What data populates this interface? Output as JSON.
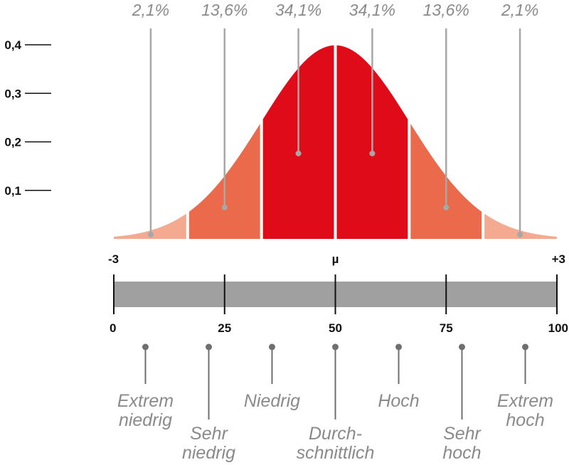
{
  "colors": {
    "outer": "#f4aa90",
    "mid": "#eb6a4c",
    "inner": "#e00b18",
    "bar": "#a0a0a0",
    "pointer": "#a7a7a7",
    "text_gray": "#8a8a8a",
    "dot": "#6f6f6f"
  },
  "chart_data": {
    "type": "area",
    "title": "",
    "distribution": "normal",
    "ylim": [
      0,
      0.4
    ],
    "xlim": [
      -3,
      3
    ],
    "y_ticks": [
      "0,4",
      "0,3",
      "0,2",
      "0,1"
    ],
    "y_tick_values": [
      0.4,
      0.3,
      0.2,
      0.1
    ],
    "sd_labels": [
      "-3",
      "µ",
      "+3"
    ],
    "sd_values": [
      -3,
      0,
      3
    ],
    "band_boundaries_sd": [
      -2,
      -1,
      0,
      1,
      2
    ],
    "regions": [
      {
        "label": "2,1%",
        "from": -3,
        "to": -2,
        "shade": "outer",
        "marker": -2.5
      },
      {
        "label": "13,6%",
        "from": -2,
        "to": -1,
        "shade": "mid",
        "marker": -1.5
      },
      {
        "label": "34,1%",
        "from": -1,
        "to": 0,
        "shade": "inner",
        "marker": -0.5
      },
      {
        "label": "34,1%",
        "from": 0,
        "to": 1,
        "shade": "inner",
        "marker": 0.5
      },
      {
        "label": "13,6%",
        "from": 1,
        "to": 2,
        "shade": "mid",
        "marker": 1.5
      },
      {
        "label": "2,1%",
        "from": 2,
        "to": 3,
        "shade": "outer",
        "marker": 2.5
      }
    ],
    "scale_ticks": [
      "0",
      "25",
      "50",
      "75",
      "100"
    ],
    "scale_values": [
      0,
      25,
      50,
      75,
      100
    ],
    "categories": [
      {
        "lines": [
          "Extrem",
          "niedrig"
        ],
        "x": 7.14,
        "level": "upper"
      },
      {
        "lines": [
          "Sehr",
          "niedrig"
        ],
        "x": 21.43,
        "level": "lower"
      },
      {
        "lines": [
          "Niedrig"
        ],
        "x": 35.71,
        "level": "upper"
      },
      {
        "lines": [
          "Durch-",
          "schnittlich"
        ],
        "x": 50,
        "level": "lower"
      },
      {
        "lines": [
          "Hoch"
        ],
        "x": 64.29,
        "level": "upper"
      },
      {
        "lines": [
          "Sehr",
          "hoch"
        ],
        "x": 78.57,
        "level": "lower"
      },
      {
        "lines": [
          "Extrem",
          "hoch"
        ],
        "x": 92.86,
        "level": "upper"
      }
    ]
  }
}
